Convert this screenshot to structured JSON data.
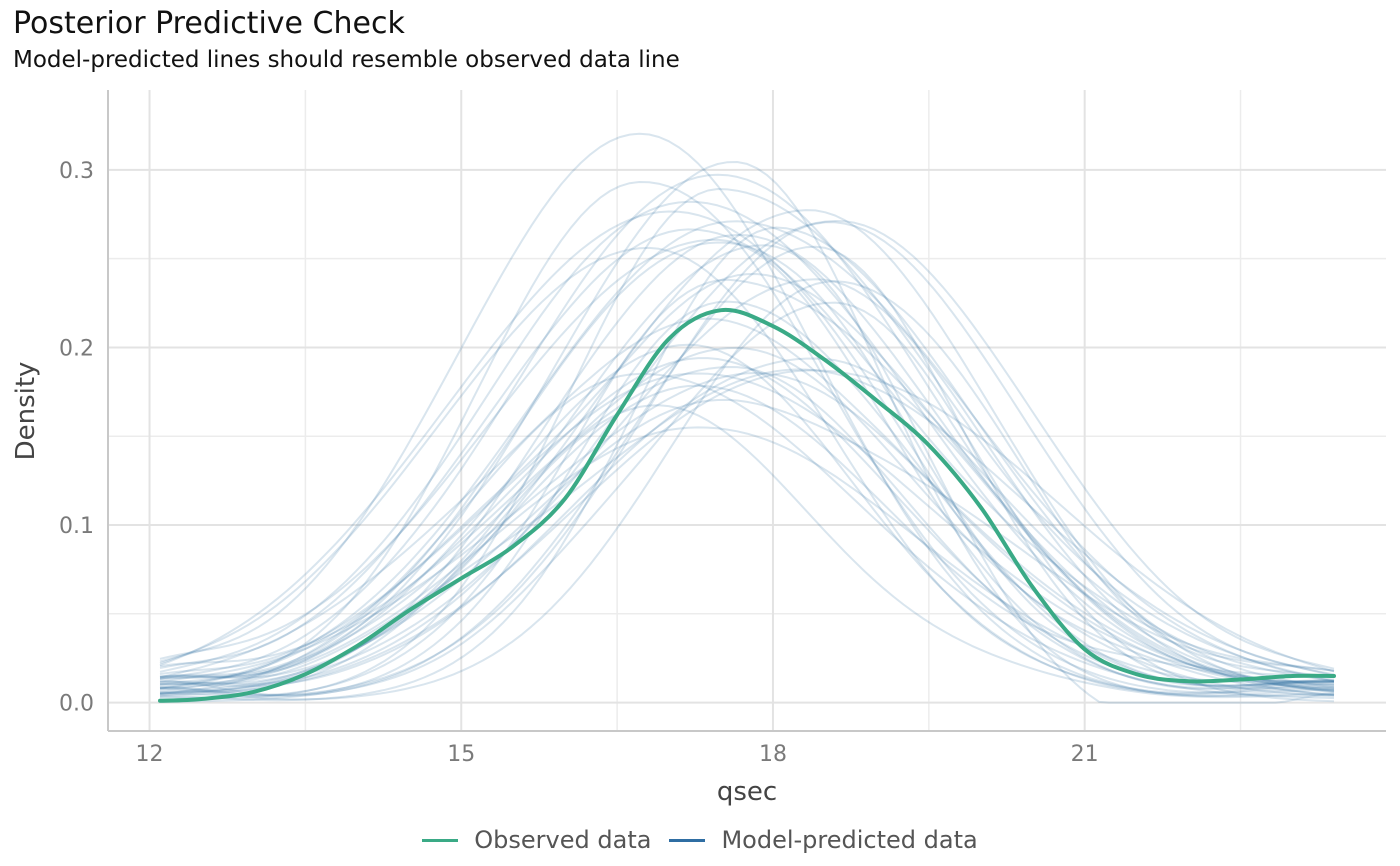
{
  "title": "Posterior Predictive Check",
  "subtitle": "Model-predicted lines should resemble observed data line",
  "colors": {
    "observed": "#3aaa86",
    "predicted": "#2f6ea3"
  },
  "chart_data": {
    "type": "line",
    "title": "Posterior Predictive Check",
    "subtitle": "Model-predicted lines should resemble observed data line",
    "xlabel": "qsec",
    "ylabel": "Density",
    "xlim": [
      11.6,
      23.9
    ],
    "ylim": [
      -0.016,
      0.345
    ],
    "x_ticks": [
      12,
      15,
      18,
      21
    ],
    "x_tick_labels": [
      "12",
      "15",
      "18",
      "21"
    ],
    "y_ticks": [
      0.0,
      0.1,
      0.2,
      0.3
    ],
    "y_tick_labels": [
      "0.0",
      "0.1",
      "0.2",
      "0.3"
    ],
    "grid": true,
    "legend_position": "bottom",
    "legend": [
      "Observed data",
      "Model-predicted data"
    ],
    "observed": {
      "name": "Observed data",
      "x": [
        12.1,
        12.5,
        13.0,
        13.5,
        14.0,
        14.5,
        15.0,
        15.5,
        16.0,
        16.5,
        17.0,
        17.5,
        18.0,
        18.5,
        19.0,
        19.5,
        20.0,
        20.5,
        21.0,
        21.5,
        22.0,
        22.5,
        23.0,
        23.4
      ],
      "y": [
        0.001,
        0.002,
        0.006,
        0.016,
        0.032,
        0.052,
        0.07,
        0.088,
        0.115,
        0.162,
        0.205,
        0.221,
        0.212,
        0.193,
        0.17,
        0.145,
        0.11,
        0.065,
        0.03,
        0.016,
        0.012,
        0.013,
        0.015,
        0.015
      ]
    },
    "predicted": {
      "name": "Model-predicted data",
      "draws": 40,
      "x_range": [
        12.1,
        23.4
      ],
      "peak_range": [
        0.15,
        0.33
      ],
      "peak_location_range": [
        16.6,
        18.7
      ]
    }
  },
  "legend": {
    "observed_label": "Observed data",
    "predicted_label": "Model-predicted data"
  }
}
